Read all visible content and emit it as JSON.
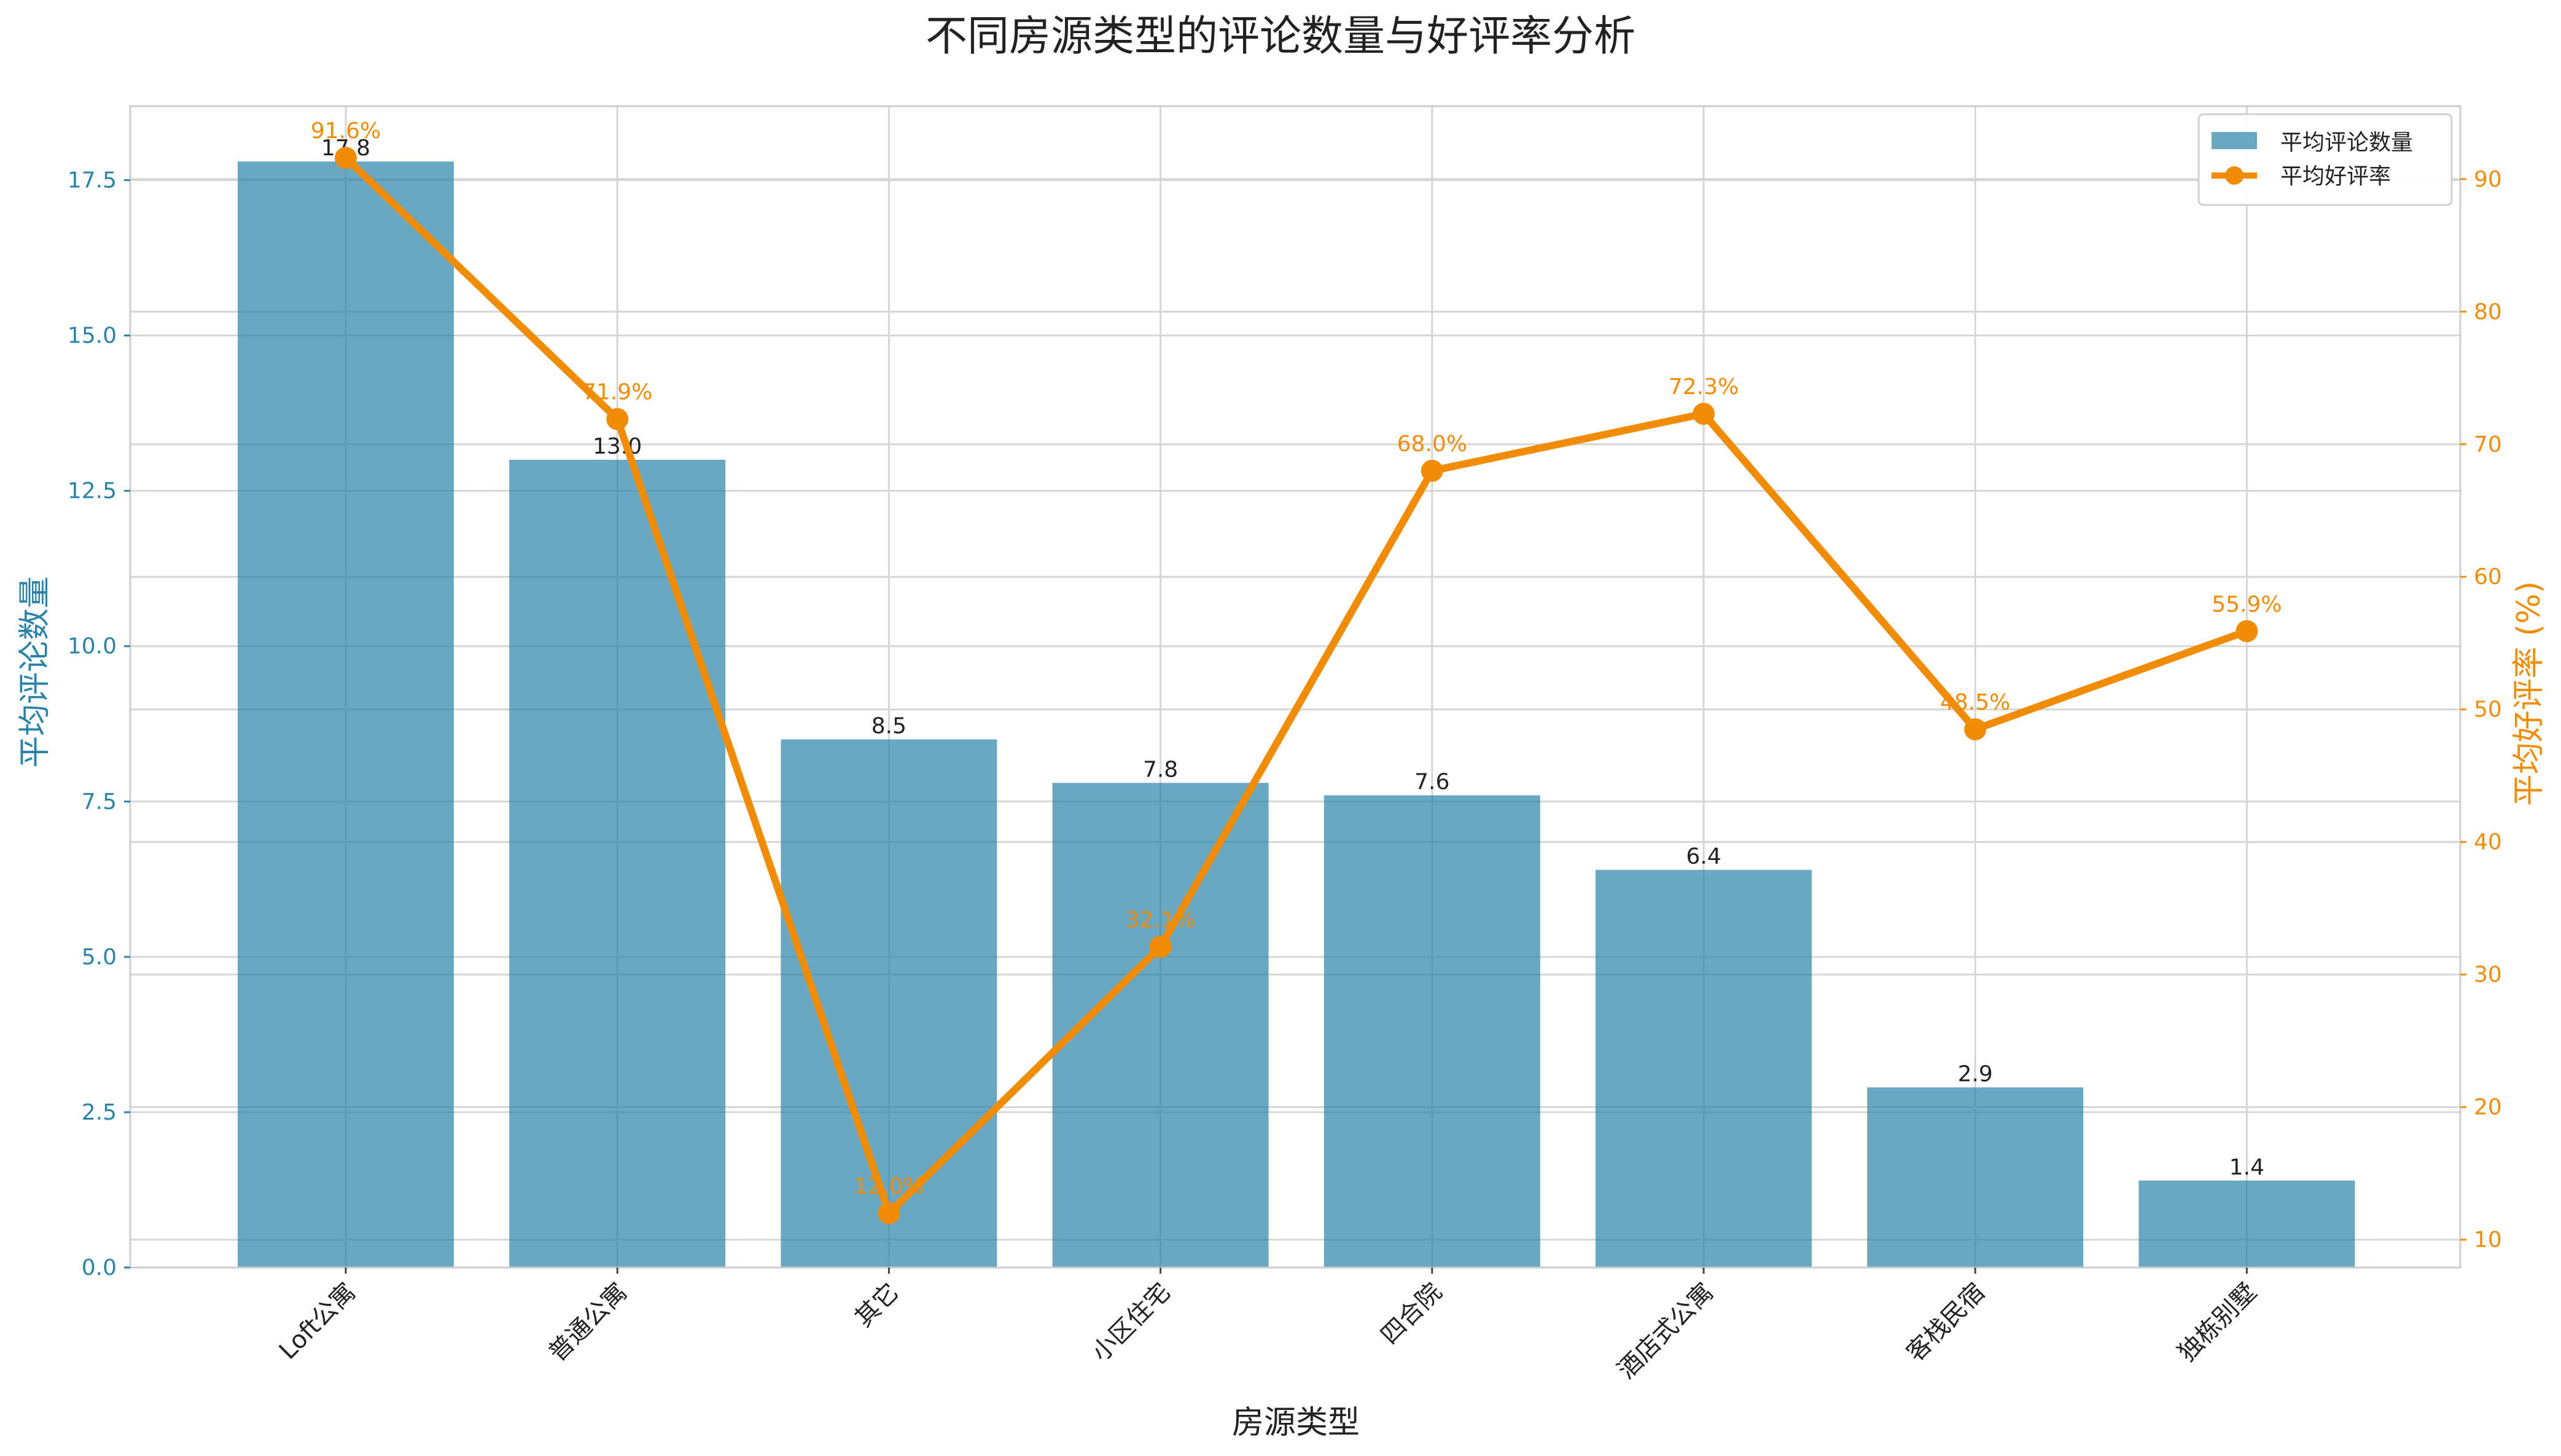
{
  "chart_data": {
    "type": "bar",
    "title": "不同房源类型的评论数量与好评率分析",
    "xlabel": "房源类型",
    "ylabel_left": "平均评论数量",
    "ylabel_right": "平均好评率 (%)",
    "categories": [
      "Loft公寓",
      "普通公寓",
      "其它",
      "小区住宅",
      "四合院",
      "酒店式公寓",
      "客栈民宿",
      "独栋别墅"
    ],
    "series": [
      {
        "name": "平均评论数量",
        "type": "bar",
        "axis": "left",
        "values": [
          17.8,
          13.0,
          8.5,
          7.8,
          7.6,
          6.4,
          2.9,
          1.4
        ],
        "labels": [
          "17.8",
          "13.0",
          "8.5",
          "7.8",
          "7.6",
          "6.4",
          "2.9",
          "1.4"
        ],
        "color": "#2b83a8"
      },
      {
        "name": "平均好评率",
        "type": "line",
        "axis": "right",
        "values": [
          91.6,
          71.9,
          12.0,
          32.1,
          68.0,
          72.3,
          48.5,
          55.9
        ],
        "labels": [
          "91.6%",
          "71.9%",
          "12.0%",
          "32.1%",
          "68.0%",
          "72.3%",
          "48.5%",
          "55.9%"
        ],
        "color": "#f08c06"
      }
    ],
    "ylim_left": [
      0,
      18.69
    ],
    "ylim_right": [
      7.9,
      95.5
    ],
    "yticks_left": [
      "0.0",
      "2.5",
      "5.0",
      "7.5",
      "10.0",
      "12.5",
      "15.0",
      "17.5"
    ],
    "yticks_right": [
      "10",
      "20",
      "30",
      "40",
      "50",
      "60",
      "70",
      "80",
      "90"
    ],
    "legend": {
      "placement": "top-right",
      "entries": [
        "平均评论数量",
        "平均好评率"
      ]
    },
    "grid": true,
    "colors": {
      "left_axis": "#2b83a8",
      "right_axis": "#f08c06",
      "grid": "#d6d6d6",
      "spine": "#cccccc"
    }
  }
}
